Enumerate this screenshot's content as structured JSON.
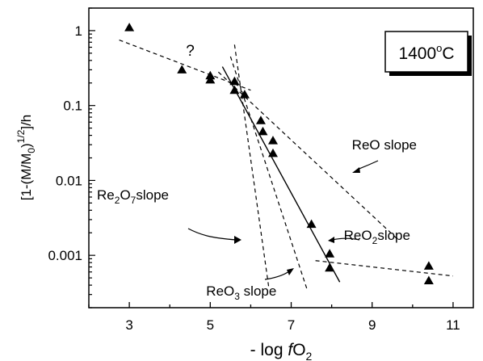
{
  "chart_data": {
    "type": "scatter",
    "title": "",
    "xlabel": {
      "prefix": "- log ",
      "var": "f",
      "main": "O",
      "sub": "2"
    },
    "ylabel": {
      "p1": "[1-(M/M",
      "sub": "0",
      "p2": ")",
      "sup": "1/2",
      "p3": "]/h"
    },
    "xlim": [
      2,
      11.5
    ],
    "ylim": [
      0.0002,
      2
    ],
    "yscale": "log",
    "grid": false,
    "x_ticks": [
      3,
      5,
      7,
      9,
      11
    ],
    "y_ticks": [
      {
        "value": 1,
        "label": "1"
      },
      {
        "value": 0.1,
        "label": "0.1"
      },
      {
        "value": 0.01,
        "label": "0.01"
      },
      {
        "value": 0.001,
        "label": "0.001"
      }
    ],
    "marker_color": "#000000",
    "points": [
      {
        "x": 3.0,
        "y": 1.1
      },
      {
        "x": 4.3,
        "y": 0.3
      },
      {
        "x": 5.0,
        "y": 0.25
      },
      {
        "x": 5.0,
        "y": 0.22
      },
      {
        "x": 5.6,
        "y": 0.21
      },
      {
        "x": 5.6,
        "y": 0.16
      },
      {
        "x": 5.85,
        "y": 0.14
      },
      {
        "x": 6.25,
        "y": 0.063
      },
      {
        "x": 6.3,
        "y": 0.045
      },
      {
        "x": 6.55,
        "y": 0.034
      },
      {
        "x": 6.55,
        "y": 0.023
      },
      {
        "x": 7.5,
        "y": 0.0026
      },
      {
        "x": 7.95,
        "y": 0.00105
      },
      {
        "x": 7.95,
        "y": 0.00068
      },
      {
        "x": 10.4,
        "y": 0.00072
      },
      {
        "x": 10.4,
        "y": 0.00046
      }
    ],
    "lines": [
      {
        "id": "fit-solid",
        "style": "solid",
        "x1": 5.3,
        "y1": 0.33,
        "x2": 8.2,
        "y2": 0.00044
      },
      {
        "id": "reo-slope",
        "style": "dashed",
        "x1": 5.2,
        "y1": 0.28,
        "x2": 9.6,
        "y2": 0.0017
      },
      {
        "id": "reo3-slope",
        "style": "dashed",
        "x1": 5.5,
        "y1": 0.45,
        "x2": 7.4,
        "y2": 0.00034
      },
      {
        "id": "re2o7-slope",
        "style": "dashed",
        "x1": 5.6,
        "y1": 0.65,
        "x2": 6.45,
        "y2": 0.00036
      },
      {
        "id": "low-p-trend",
        "style": "dashed",
        "x1": 2.75,
        "y1": 0.75,
        "x2": 6.0,
        "y2": 0.16
      },
      {
        "id": "high-p-trend",
        "style": "dashed",
        "x1": 7.6,
        "y1": 0.00085,
        "x2": 11.0,
        "y2": 0.00053
      }
    ],
    "annotations": [
      {
        "id": "question",
        "text": "?",
        "x": 4.4,
        "y": 0.46
      },
      {
        "id": "reo",
        "text": "ReO slope",
        "x": 8.5,
        "y": 0.026
      },
      {
        "id": "reo2",
        "text_main": "ReO",
        "text_sub": "2",
        "text_rest": "slope",
        "x": 8.3,
        "y": 0.0016
      },
      {
        "id": "reo3",
        "text_main": "ReO",
        "text_sub": "3",
        "text_rest": " slope",
        "x": 4.9,
        "y": 0.00029
      },
      {
        "id": "re2o7",
        "text_main": "Re",
        "text_sub": "2",
        "text_mid": "O",
        "text_sub2": "7",
        "text_rest": "slope",
        "x": 2.2,
        "y": 0.0056
      }
    ],
    "legend_box": {
      "text_main": "1400",
      "text_sup": "o",
      "text_rest": "C",
      "placement": "top-right"
    }
  }
}
